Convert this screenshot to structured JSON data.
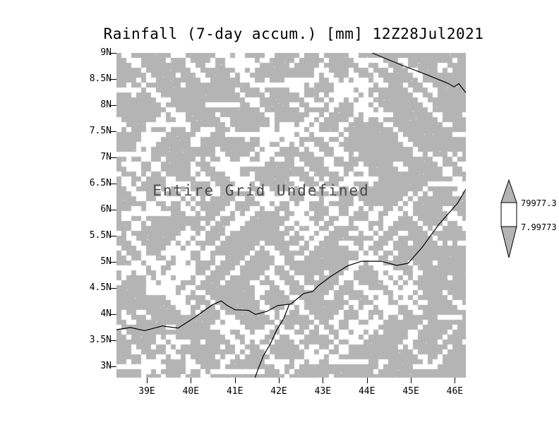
{
  "chart_data": {
    "type": "heatmap",
    "title": "Rainfall (7-day accum.) [mm] 12Z28Jul2021",
    "annotation": "Entire Grid Undefined",
    "values": null,
    "grid": false,
    "legend_position": "right",
    "x_axis": {
      "range": [
        38.31,
        46.25
      ],
      "tick_values": [
        39,
        40,
        41,
        42,
        43,
        44,
        45,
        46
      ],
      "tick_labels": [
        "39E",
        "40E",
        "41E",
        "42E",
        "43E",
        "44E",
        "45E",
        "46E"
      ]
    },
    "y_axis": {
      "range": [
        2.78,
        9.0
      ],
      "tick_values": [
        9,
        8.5,
        8,
        7.5,
        7,
        6.5,
        6,
        5.5,
        5,
        4.5,
        4,
        3.5,
        3
      ],
      "tick_labels": [
        "9N",
        "8.5N",
        "8N",
        "7.5N",
        "7N",
        "6.5N",
        "6N",
        "5.5N",
        "5N",
        "4.5N",
        "4N",
        "3.5N",
        "3N"
      ]
    },
    "colorbar": {
      "labels": [
        "79977.3",
        "7.99773"
      ],
      "segment_colors": [
        "#b4b4b4",
        "#ffffff",
        "#b4b4b4"
      ]
    },
    "colors": {
      "undefined_fill": "#b4b4b4",
      "speckle": "#ffffff",
      "coastline": "#000000",
      "text": "#000000",
      "annotation_text": "#4a4a4a"
    },
    "coastlines": [
      [
        [
          38.31,
          3.7
        ],
        [
          38.63,
          3.74
        ],
        [
          38.95,
          3.68
        ],
        [
          39.35,
          3.77
        ],
        [
          39.71,
          3.73
        ],
        [
          40.08,
          3.93
        ],
        [
          40.48,
          4.17
        ],
        [
          40.69,
          4.25
        ],
        [
          40.83,
          4.16
        ],
        [
          41.01,
          4.08
        ],
        [
          41.31,
          4.07
        ],
        [
          41.47,
          3.99
        ],
        [
          41.73,
          4.05
        ],
        [
          41.97,
          4.16
        ],
        [
          42.27,
          4.19
        ],
        [
          42.43,
          4.3
        ],
        [
          42.56,
          4.39
        ],
        [
          42.77,
          4.43
        ],
        [
          42.91,
          4.55
        ],
        [
          43.2,
          4.73
        ],
        [
          43.56,
          4.92
        ],
        [
          43.88,
          5.01
        ],
        [
          44.33,
          5.01
        ],
        [
          44.68,
          4.93
        ],
        [
          44.94,
          4.97
        ],
        [
          45.26,
          5.28
        ],
        [
          45.64,
          5.72
        ],
        [
          46.06,
          6.12
        ],
        [
          46.25,
          6.39
        ]
      ],
      [
        [
          42.24,
          4.19
        ],
        [
          42.11,
          3.91
        ],
        [
          41.95,
          3.69
        ],
        [
          41.81,
          3.43
        ],
        [
          41.65,
          3.2
        ],
        [
          41.54,
          2.97
        ],
        [
          41.46,
          2.78
        ]
      ],
      [
        [
          44.12,
          9.0
        ],
        [
          44.78,
          8.77
        ],
        [
          45.4,
          8.57
        ],
        [
          45.84,
          8.42
        ],
        [
          45.98,
          8.35
        ],
        [
          46.09,
          8.41
        ],
        [
          46.25,
          8.24
        ]
      ]
    ]
  }
}
